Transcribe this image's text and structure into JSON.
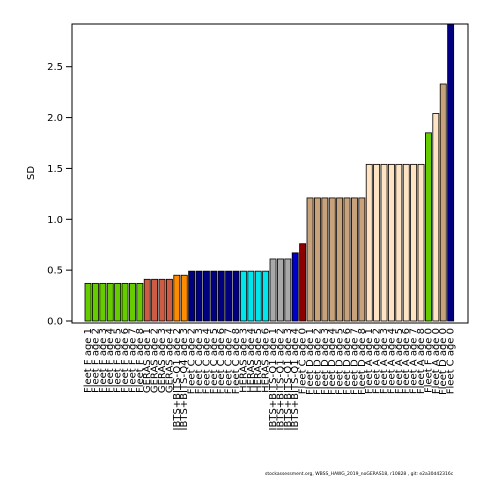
{
  "chart_data": {
    "type": "bar",
    "ylabel": "SD",
    "ylim": [
      0,
      2.92
    ],
    "yticks": [
      0.0,
      0.5,
      1.0,
      1.5,
      2.0,
      2.5
    ],
    "ytick_labels": [
      "0.0",
      "0.5",
      "1.0",
      "1.5",
      "2.0",
      "2.5"
    ],
    "grid": false,
    "bars": [
      {
        "label": "Fleet F age 1",
        "value": 0.37,
        "color": "#66CC00"
      },
      {
        "label": "Fleet F age 2",
        "value": 0.37,
        "color": "#66CC00"
      },
      {
        "label": "Fleet F age 3",
        "value": 0.37,
        "color": "#66CC00"
      },
      {
        "label": "Fleet F age 4",
        "value": 0.37,
        "color": "#66CC00"
      },
      {
        "label": "Fleet F age 5",
        "value": 0.37,
        "color": "#66CC00"
      },
      {
        "label": "Fleet F age 6",
        "value": 0.37,
        "color": "#66CC00"
      },
      {
        "label": "Fleet F age 7",
        "value": 0.37,
        "color": "#66CC00"
      },
      {
        "label": "Fleet F age 8",
        "value": 0.37,
        "color": "#66CC00"
      },
      {
        "label": "GERAS age 1",
        "value": 0.41,
        "color": "#CD5C45"
      },
      {
        "label": "GERAS age 2",
        "value": 0.41,
        "color": "#CD5C45"
      },
      {
        "label": "GERAS age 3",
        "value": 0.41,
        "color": "#CD5C45"
      },
      {
        "label": "GERAS age 4",
        "value": 0.41,
        "color": "#CD5C45"
      },
      {
        "label": "IBTS+BITS-Q1 age 2",
        "value": 0.45,
        "color": "#FF8C00"
      },
      {
        "label": "IBTS+BITS-Q4 age 3",
        "value": 0.45,
        "color": "#FF8C00"
      },
      {
        "label": "Fleet C age 2",
        "value": 0.49,
        "color": "#000080"
      },
      {
        "label": "Fleet C age 3",
        "value": 0.49,
        "color": "#000080"
      },
      {
        "label": "Fleet C age 4",
        "value": 0.49,
        "color": "#000080"
      },
      {
        "label": "Fleet C age 5",
        "value": 0.49,
        "color": "#000080"
      },
      {
        "label": "Fleet C age 6",
        "value": 0.49,
        "color": "#000080"
      },
      {
        "label": "Fleet C age 7",
        "value": 0.49,
        "color": "#000080"
      },
      {
        "label": "Fleet C age 8",
        "value": 0.49,
        "color": "#000080"
      },
      {
        "label": "HERAS age 3",
        "value": 0.49,
        "color": "#00E5EE"
      },
      {
        "label": "HERAS age 4",
        "value": 0.49,
        "color": "#00E5EE"
      },
      {
        "label": "HERAS age 5",
        "value": 0.49,
        "color": "#00E5EE"
      },
      {
        "label": "HERAS age 6",
        "value": 0.49,
        "color": "#00E5EE"
      },
      {
        "label": "IBTS+BITS-Q1 age 1",
        "value": 0.61,
        "color": "#A9A9A9"
      },
      {
        "label": "IBTS+BITS-Q1 age 2",
        "value": 0.61,
        "color": "#A9A9A9"
      },
      {
        "label": "IBTS+BITS-Q1 age 3",
        "value": 0.61,
        "color": "#A9A9A9"
      },
      {
        "label": "IBTS+BITS-Q1 age 4",
        "value": 0.67,
        "color": "#0000CD"
      },
      {
        "label": "Fleet C age 0",
        "value": 0.76,
        "color": "#8B0000"
      },
      {
        "label": "Fleet D age 1",
        "value": 1.21,
        "color": "#C8A27A"
      },
      {
        "label": "Fleet D age 2",
        "value": 1.21,
        "color": "#C8A27A"
      },
      {
        "label": "Fleet D age 3",
        "value": 1.21,
        "color": "#C8A27A"
      },
      {
        "label": "Fleet D age 4",
        "value": 1.21,
        "color": "#C8A27A"
      },
      {
        "label": "Fleet D age 5",
        "value": 1.21,
        "color": "#C8A27A"
      },
      {
        "label": "Fleet D age 6",
        "value": 1.21,
        "color": "#C8A27A"
      },
      {
        "label": "Fleet D age 7",
        "value": 1.21,
        "color": "#C8A27A"
      },
      {
        "label": "Fleet D age 8",
        "value": 1.21,
        "color": "#C8A27A"
      },
      {
        "label": "Fleet A age 1",
        "value": 1.54,
        "color": "#FFE4C4"
      },
      {
        "label": "Fleet A age 2",
        "value": 1.54,
        "color": "#FFE4C4"
      },
      {
        "label": "Fleet A age 3",
        "value": 1.54,
        "color": "#FFE4C4"
      },
      {
        "label": "Fleet A age 4",
        "value": 1.54,
        "color": "#FFE4C4"
      },
      {
        "label": "Fleet A age 5",
        "value": 1.54,
        "color": "#FFE4C4"
      },
      {
        "label": "Fleet A age 6",
        "value": 1.54,
        "color": "#FFE4C4"
      },
      {
        "label": "Fleet A age 7",
        "value": 1.54,
        "color": "#FFE4C4"
      },
      {
        "label": "Fleet A age 8",
        "value": 1.54,
        "color": "#FFE4C4"
      },
      {
        "label": "Fleet F age 0",
        "value": 1.85,
        "color": "#66CC00"
      },
      {
        "label": "Fleet A age 0",
        "value": 2.04,
        "color": "#FFE4C4"
      },
      {
        "label": "Fleet D age 0",
        "value": 2.33,
        "color": "#C8A27A"
      },
      {
        "label": "Fleet C age 0",
        "value": 2.92,
        "color": "#000080"
      }
    ]
  },
  "footer": "stockassessment.org,  WBSS_HAWG_2019_noGERAS18,  r10828  ,  git:  e2a30d42316c"
}
